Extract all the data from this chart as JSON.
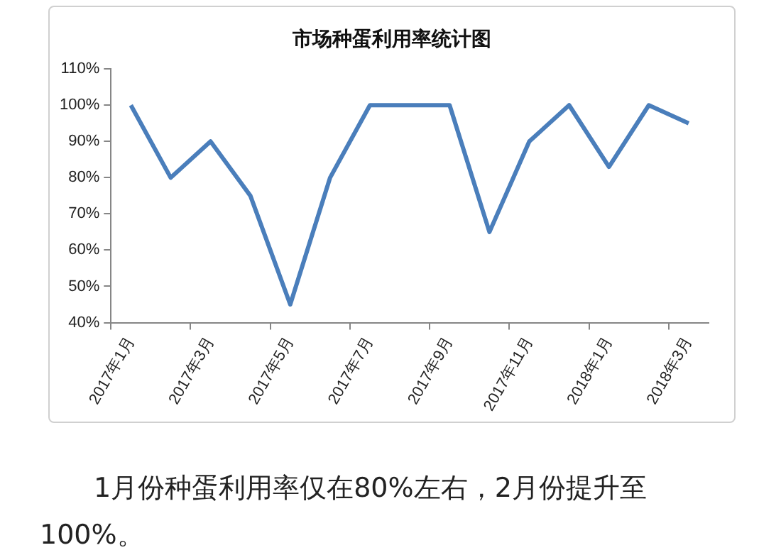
{
  "chart_data": {
    "type": "line",
    "title": "市场种蛋利用率统计图",
    "categories": [
      "2017年1月",
      null,
      "2017年3月",
      null,
      "2017年5月",
      null,
      "2017年7月",
      null,
      "2017年9月",
      null,
      "2017年11月",
      null,
      "2018年1月",
      null,
      "2018年3月"
    ],
    "series": [
      {
        "color": "#4a7ebb",
        "values": [
          100,
          80,
          90,
          75,
          45,
          80,
          100,
          100,
          100,
          65,
          90,
          100,
          83,
          100,
          95
        ]
      }
    ],
    "ylim": [
      40,
      110
    ],
    "yticks": [
      {
        "value": 40,
        "label": "40%"
      },
      {
        "value": 50,
        "label": "50%"
      },
      {
        "value": 60,
        "label": "60%"
      },
      {
        "value": 70,
        "label": "70%"
      },
      {
        "value": 80,
        "label": "80%"
      },
      {
        "value": 90,
        "label": "90%"
      },
      {
        "value": 100,
        "label": "100%"
      },
      {
        "value": 110,
        "label": "110%"
      }
    ],
    "grid": false,
    "legend": false,
    "marker": "none",
    "line_style": "solid",
    "annotations": [
      "1月份种蛋利用率仅在80%左右，2月份提升至100%。"
    ]
  }
}
